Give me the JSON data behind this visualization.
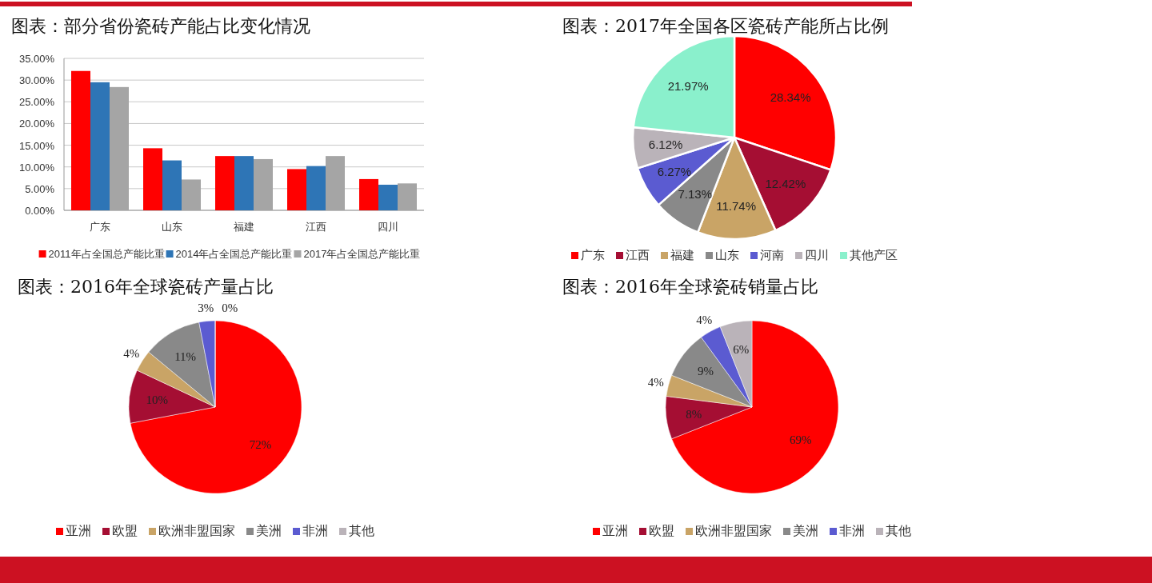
{
  "chart_data": [
    {
      "type": "bar",
      "title": "图表：部分省份瓷砖产能占比变化情况",
      "categories": [
        "广东",
        "山东",
        "福建",
        "江西",
        "四川"
      ],
      "series": [
        {
          "name": "2011年占全国总产能比重",
          "color": "#ff0000",
          "values": [
            32.1,
            14.3,
            12.5,
            9.5,
            7.2
          ]
        },
        {
          "name": "2014年占全国总产能比重",
          "color": "#2e75b6",
          "values": [
            29.5,
            11.5,
            12.5,
            10.2,
            5.9
          ]
        },
        {
          "name": "2017年占全国总产能比重",
          "color": "#a5a5a5",
          "values": [
            28.4,
            7.1,
            11.8,
            12.5,
            6.2
          ]
        }
      ],
      "ylim": [
        0,
        35
      ],
      "yticks": [
        {
          "value": 0,
          "label": "0.00%"
        },
        {
          "value": 5,
          "label": "5.00%"
        },
        {
          "value": 10,
          "label": "10.00%"
        },
        {
          "value": 15,
          "label": "15.00%"
        },
        {
          "value": 20,
          "label": "20.00%"
        },
        {
          "value": 25,
          "label": "25.00%"
        },
        {
          "value": 30,
          "label": "30.00%"
        },
        {
          "value": 35,
          "label": "35.00%"
        }
      ],
      "grid": "y",
      "legend": "bottom"
    },
    {
      "type": "pie",
      "title": "图表：2017年全国各区瓷砖产能所占比例",
      "categories": [
        "广东",
        "江西",
        "福建",
        "山东",
        "河南",
        "四川",
        "其他产区"
      ],
      "values": [
        28.34,
        12.42,
        11.74,
        7.13,
        6.27,
        6.12,
        21.97
      ],
      "value_labels": [
        "28.34%",
        "12.42%",
        "11.74%",
        "7.13%",
        "6.27%",
        "6.12%",
        "21.97%"
      ],
      "colors": [
        "#ff0000",
        "#a50e33",
        "#c9a466",
        "#898989",
        "#5b5bd1",
        "#bab3b9",
        "#8af0cc"
      ],
      "legend": "bottom"
    },
    {
      "type": "pie",
      "title": "图表：2016年全球瓷砖产量占比",
      "categories": [
        "亚洲",
        "欧盟",
        "欧洲非盟国家",
        "美洲",
        "非洲",
        "其他"
      ],
      "values": [
        72,
        10,
        4,
        11,
        3,
        0
      ],
      "value_labels": [
        "72%",
        "10%",
        "4%",
        "11%",
        "3%",
        "0%"
      ],
      "colors": [
        "#ff0000",
        "#a50e33",
        "#c9a466",
        "#898989",
        "#5b5bd1",
        "#bab3b9"
      ],
      "legend": "bottom"
    },
    {
      "type": "pie",
      "title": "图表：2016年全球瓷砖销量占比",
      "categories": [
        "亚洲",
        "欧盟",
        "欧洲非盟国家",
        "美洲",
        "非洲",
        "其他"
      ],
      "values": [
        69,
        8,
        4,
        9,
        4,
        6
      ],
      "value_labels": [
        "69%",
        "8%",
        "4%",
        "9%",
        "4%",
        "6%"
      ],
      "colors": [
        "#ff0000",
        "#a50e33",
        "#c9a466",
        "#898989",
        "#5b5bd1",
        "#bab3b9"
      ],
      "legend": "bottom"
    }
  ]
}
